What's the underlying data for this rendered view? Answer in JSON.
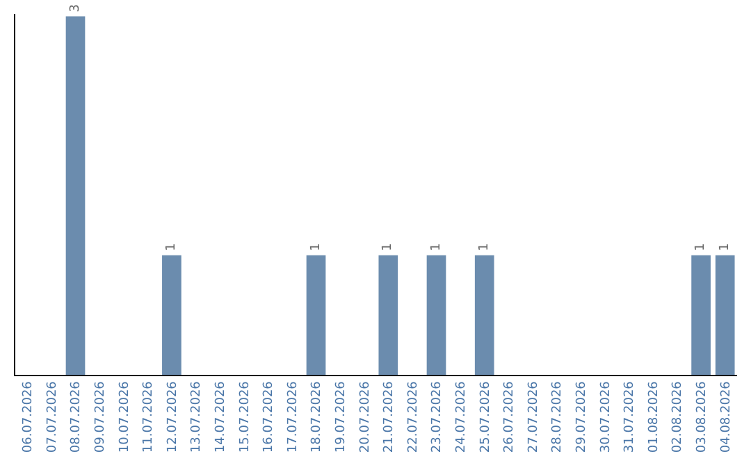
{
  "chart_data": {
    "type": "bar",
    "categories": [
      "06.07.2026",
      "07.07.2026",
      "08.07.2026",
      "09.07.2026",
      "10.07.2026",
      "11.07.2026",
      "12.07.2026",
      "13.07.2026",
      "14.07.2026",
      "15.07.2026",
      "16.07.2026",
      "17.07.2026",
      "18.07.2026",
      "19.07.2026",
      "20.07.2026",
      "21.07.2026",
      "22.07.2026",
      "23.07.2026",
      "24.07.2026",
      "25.07.2026",
      "26.07.2026",
      "27.07.2026",
      "28.07.2026",
      "29.07.2026",
      "30.07.2026",
      "31.07.2026",
      "01.08.2026",
      "02.08.2026",
      "03.08.2026",
      "04.08.2026"
    ],
    "values": [
      0,
      0,
      3,
      0,
      0,
      0,
      1,
      0,
      0,
      0,
      0,
      0,
      1,
      0,
      0,
      1,
      0,
      1,
      0,
      1,
      0,
      0,
      0,
      0,
      0,
      0,
      0,
      0,
      1,
      1
    ],
    "value_labels": [
      null,
      null,
      "3",
      null,
      null,
      null,
      "1",
      null,
      null,
      null,
      null,
      null,
      "1",
      null,
      null,
      "1",
      null,
      "1",
      null,
      "1",
      null,
      null,
      null,
      null,
      null,
      null,
      null,
      null,
      "1",
      "1"
    ],
    "color": "#6b8cae",
    "ylim": [
      0,
      3.02
    ],
    "tick_labels": "x"
  }
}
